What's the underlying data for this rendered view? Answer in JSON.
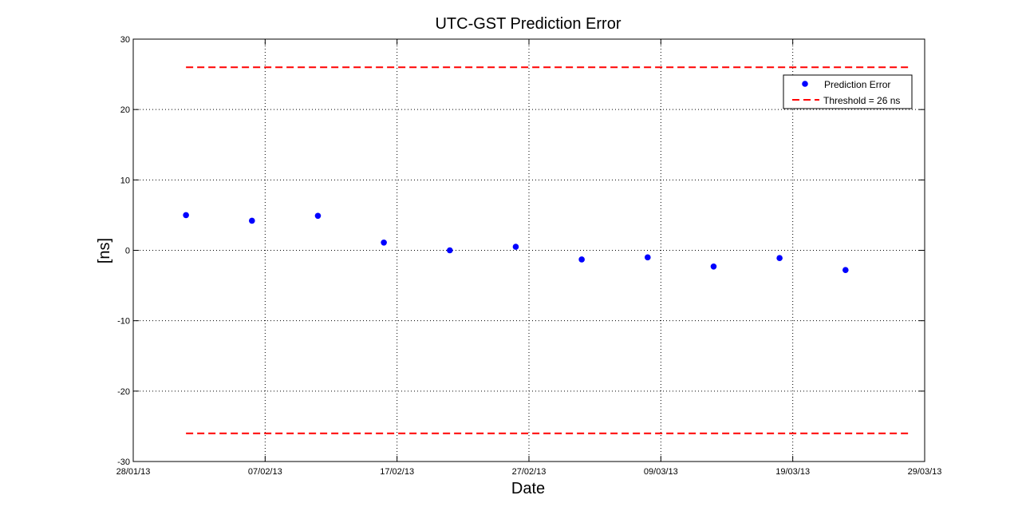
{
  "chart_data": {
    "type": "scatter",
    "title": "UTC-GST Prediction Error",
    "xlabel": "Date",
    "ylabel": "[ns]",
    "x_ticks": [
      "28/01/13",
      "07/02/13",
      "17/02/13",
      "27/02/13",
      "09/03/13",
      "19/03/13",
      "29/03/13"
    ],
    "xlim": [
      "2013-01-28",
      "2013-03-29"
    ],
    "ylim": [
      -30,
      30
    ],
    "y_ticks": [
      -30,
      -20,
      -10,
      0,
      10,
      20,
      30
    ],
    "grid": true,
    "legend_position": "top-right",
    "series": [
      {
        "name": "Prediction Error",
        "kind": "points",
        "color": "#0000ff",
        "points": [
          {
            "x": "2013-02-01",
            "y": 5.0
          },
          {
            "x": "2013-02-06",
            "y": 4.2
          },
          {
            "x": "2013-02-11",
            "y": 4.9
          },
          {
            "x": "2013-02-16",
            "y": 1.1
          },
          {
            "x": "2013-02-21",
            "y": 0.0
          },
          {
            "x": "2013-02-26",
            "y": 0.5
          },
          {
            "x": "2013-03-03",
            "y": -1.3
          },
          {
            "x": "2013-03-08",
            "y": -1.0
          },
          {
            "x": "2013-03-13",
            "y": -2.3
          },
          {
            "x": "2013-03-18",
            "y": -1.1
          },
          {
            "x": "2013-03-23",
            "y": -2.8
          }
        ]
      },
      {
        "name": "Threshold = 26 ns",
        "kind": "dashed-lines",
        "color": "#ff0000",
        "x_start": "2013-02-01",
        "x_end": "2013-03-28",
        "levels": [
          26,
          -26
        ]
      }
    ]
  }
}
